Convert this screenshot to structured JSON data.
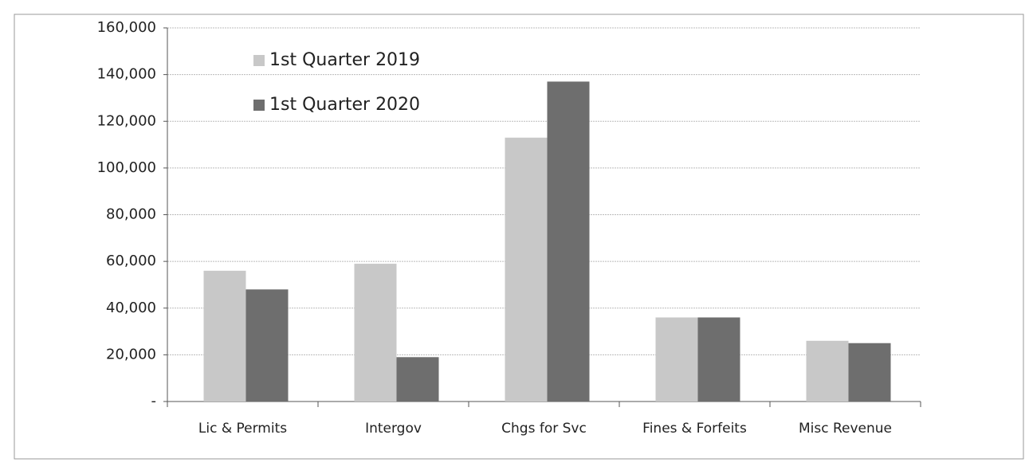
{
  "chart_data": {
    "type": "bar",
    "categories": [
      "Lic & Permits",
      "Intergov",
      "Chgs for Svc",
      "Fines & Forfeits",
      "Misc Revenue"
    ],
    "series": [
      {
        "name": "1st Quarter 2019",
        "color": "#c8c8c8",
        "values": [
          56000,
          59000,
          113000,
          36000,
          26000
        ]
      },
      {
        "name": "1st Quarter 2020",
        "color": "#6e6e6e",
        "values": [
          48000,
          19000,
          137000,
          36000,
          25000
        ]
      }
    ],
    "ylim": [
      0,
      160000
    ],
    "yticks": [
      {
        "value": 0,
        "label": "-"
      },
      {
        "value": 20000,
        "label": "20,000"
      },
      {
        "value": 40000,
        "label": "40,000"
      },
      {
        "value": 60000,
        "label": "60,000"
      },
      {
        "value": 80000,
        "label": "80,000"
      },
      {
        "value": 100000,
        "label": "100,000"
      },
      {
        "value": 120000,
        "label": "120,000"
      },
      {
        "value": 140000,
        "label": "140,000"
      },
      {
        "value": 160000,
        "label": "160,000"
      }
    ],
    "grid": true,
    "legend": "upper left"
  }
}
